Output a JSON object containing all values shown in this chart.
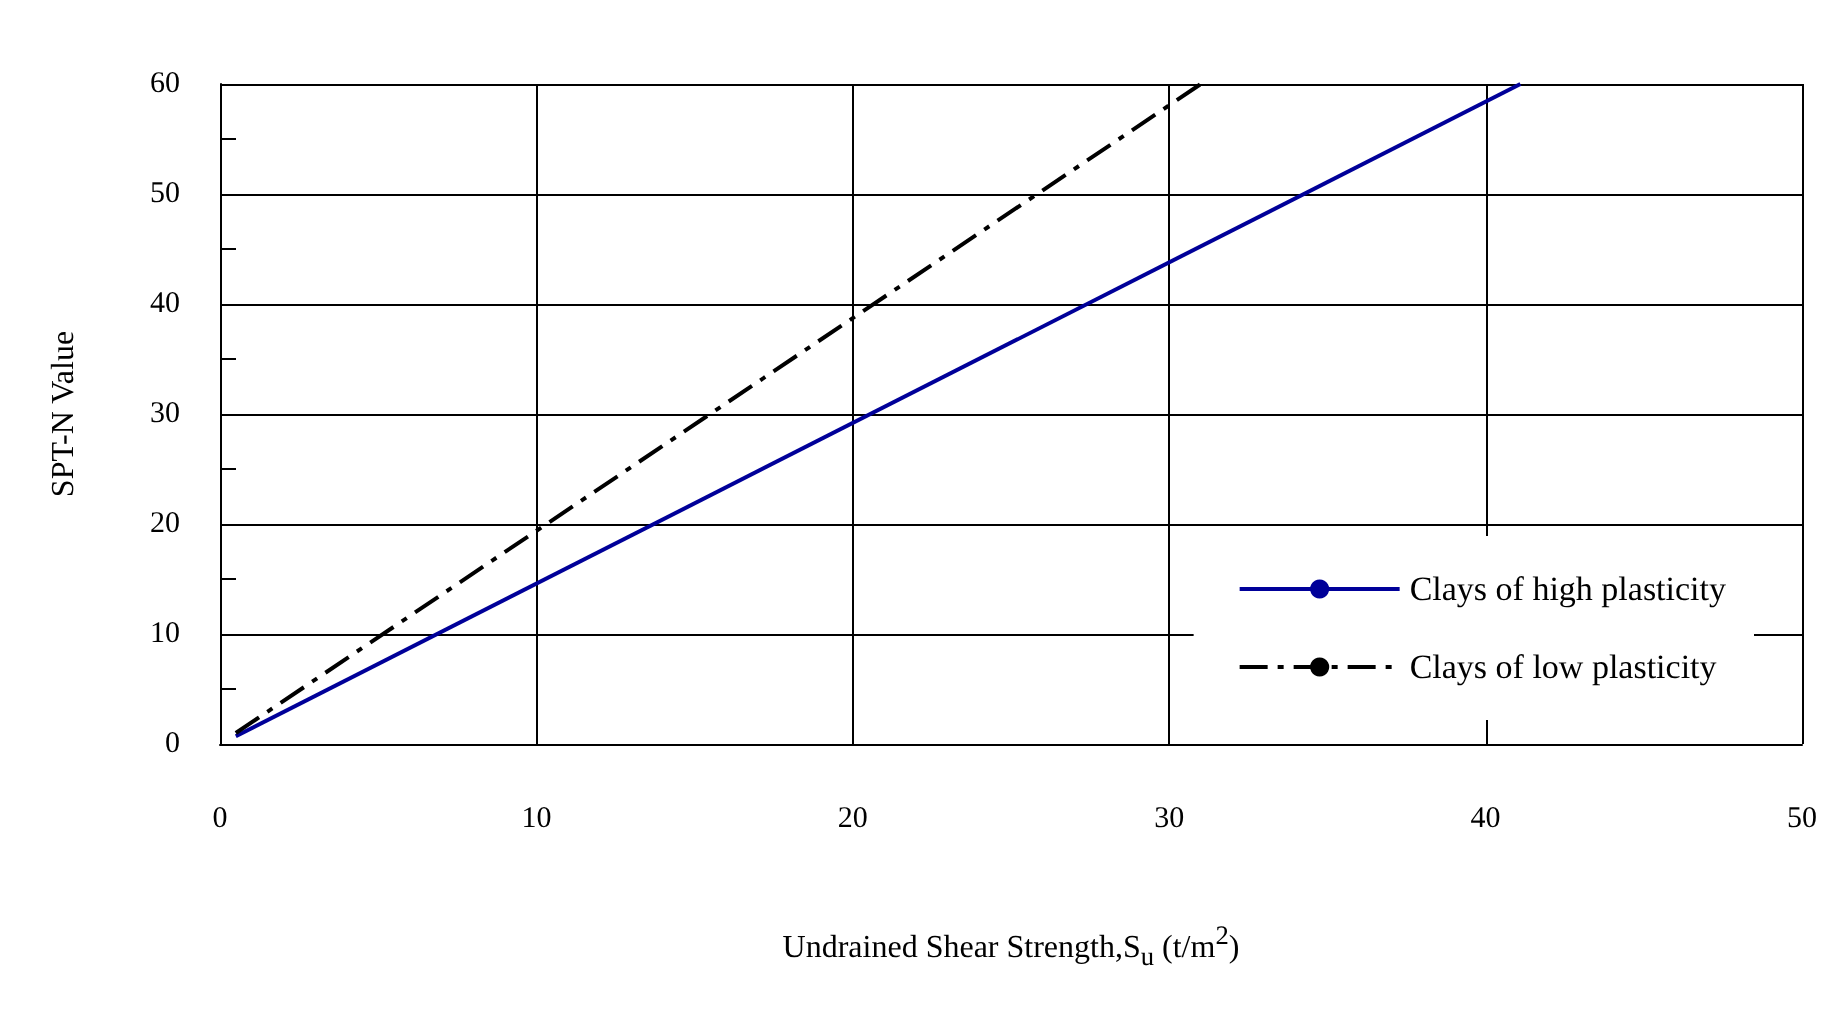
{
  "chart_data": {
    "type": "line",
    "xlabel": "Undrained Shear Strength,S$_{u}$ (t/m$^{2}$)",
    "ylabel": "SPT-N Value",
    "xlim": [
      0,
      50
    ],
    "xticks": [
      0,
      10,
      20,
      30,
      40,
      50
    ],
    "ylim": [
      0,
      60
    ],
    "yticks": [
      0,
      10,
      20,
      30,
      40,
      50,
      60
    ],
    "grid": true,
    "legend": "bottom right",
    "marker": "none",
    "series": [
      {
        "name": "Clays of high plasticity",
        "color": "#000099",
        "line_style": "solid",
        "x": [
          0.5,
          41.1
        ],
        "values": [
          0.7,
          60
        ]
      },
      {
        "name": "Clays of low plasticity",
        "color": "#000000",
        "line_style": "dashed",
        "x": [
          0.5,
          31
        ],
        "values": [
          1,
          60
        ]
      }
    ]
  }
}
